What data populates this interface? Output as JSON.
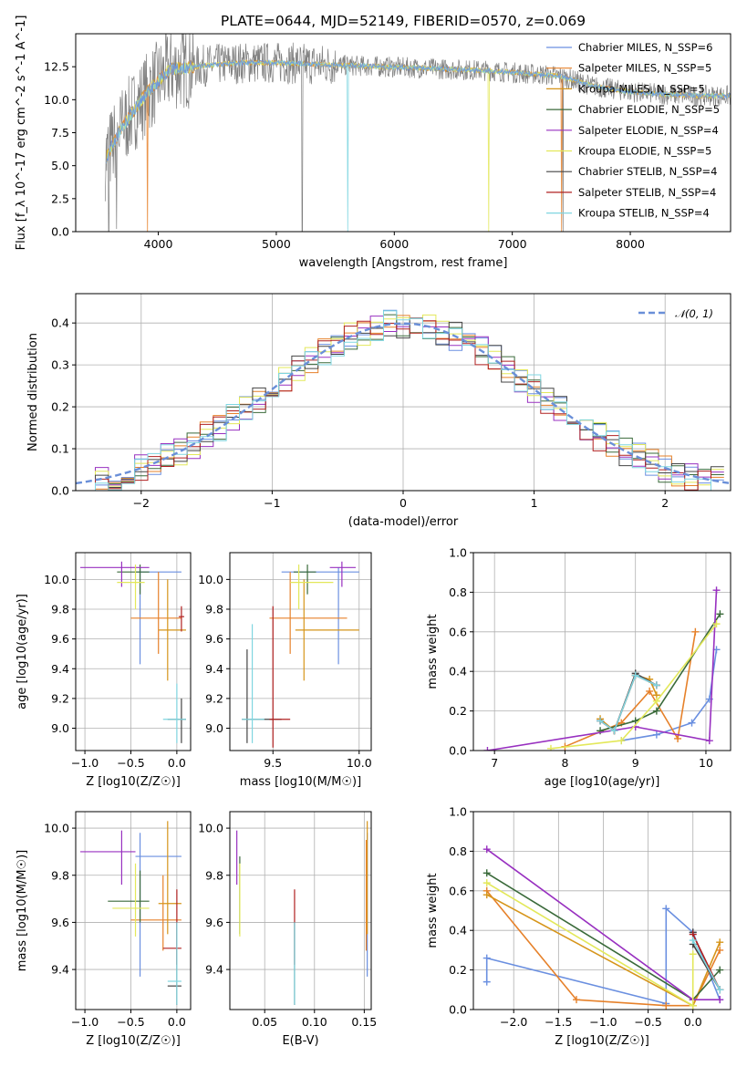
{
  "title": "PLATE=0644, MJD=52149, FIBERID=0570, z=0.069",
  "colors": [
    "#6a8fe0",
    "#e6812a",
    "#d6951a",
    "#3a6a3a",
    "#9830c0",
    "#e3e85a",
    "#444444",
    "#b02020",
    "#7fd6e0"
  ],
  "chart_data": [
    {
      "id": "spectrum",
      "type": "line",
      "title": "PLATE=0644, MJD=52149, FIBERID=0570, z=0.069",
      "xlabel": "wavelength [Angstrom, rest frame]",
      "ylabel": "Flux [f_λ 10^-17 erg cm^-2 s^-1 A^-1]",
      "xlim": [
        3300,
        8850
      ],
      "ylim": [
        0,
        15
      ],
      "xticks": [
        "4000",
        "5000",
        "6000",
        "7000",
        "8000"
      ],
      "yticks": [
        "0.0",
        "2.5",
        "5.0",
        "7.5",
        "10.0",
        "12.5"
      ],
      "legend": [
        "Chabrier MILES, N_SSP=6",
        "Salpeter MILES, N_SSP=5",
        "Kroupa MILES, N_SSP=5",
        "Chabrier ELODIE, N_SSP=5",
        "Salpeter ELODIE, N_SSP=4",
        "Kroupa ELODIE, N_SSP=5",
        "Chabrier STELIB, N_SSP=4",
        "Salpeter STELIB, N_SSP=4",
        "Kroupa STELIB, N_SSP=4"
      ],
      "continuum": {
        "x": [
          3550,
          3700,
          3900,
          4100,
          4400,
          4700,
          5000,
          5300,
          5600,
          5900,
          6200,
          6500,
          6800,
          7100,
          7400,
          7700,
          8000,
          8300,
          8600
        ],
        "y": [
          5.5,
          8.0,
          10.5,
          12.3,
          12.6,
          12.8,
          12.8,
          12.7,
          12.6,
          12.5,
          12.4,
          12.3,
          12.2,
          12.0,
          11.8,
          11.0,
          10.6,
          10.4,
          10.3
        ]
      }
    },
    {
      "id": "residuals",
      "type": "line",
      "xlabel": "(data-model)/error",
      "ylabel": "Normed distribution",
      "xlim": [
        -2.5,
        2.5
      ],
      "ylim": [
        0,
        0.47
      ],
      "xticks": [
        "−2",
        "−1",
        "0",
        "1",
        "2"
      ],
      "yticks": [
        "0.0",
        "0.1",
        "0.2",
        "0.3",
        "0.4"
      ],
      "legend": "𝒩(0, 1)",
      "hist_x": [
        -2.4,
        -2.3,
        -2.2,
        -2.1,
        -2.0,
        -1.9,
        -1.8,
        -1.7,
        -1.6,
        -1.5,
        -1.4,
        -1.3,
        -1.2,
        -1.1,
        -1.0,
        -0.9,
        -0.8,
        -0.7,
        -0.6,
        -0.5,
        -0.4,
        -0.3,
        -0.2,
        -0.1,
        0.0,
        0.1,
        0.2,
        0.3,
        0.4,
        0.5,
        0.6,
        0.7,
        0.8,
        0.9,
        1.0,
        1.1,
        1.2,
        1.3,
        1.4,
        1.5,
        1.6,
        1.7,
        1.8,
        1.9,
        2.0,
        2.1,
        2.2,
        2.3,
        2.4
      ]
    },
    {
      "id": "age-vs-Z",
      "type": "scatter",
      "xlabel": "Z [log10(Z/Z☉)]",
      "ylabel": "age [log10(age/yr)]",
      "xlim": [
        -1.1,
        0.15
      ],
      "ylim": [
        8.85,
        10.18
      ],
      "xticks": [
        "−1.0",
        "−0.5",
        "0.0"
      ],
      "yticks": [
        "9.0",
        "9.2",
        "9.4",
        "9.6",
        "9.8",
        "10.0"
      ],
      "points": [
        {
          "x": -0.4,
          "y": 10.05,
          "xe": [
            -0.45,
            0.05
          ],
          "ye": [
            9.43,
            10.08
          ]
        },
        {
          "x": -0.2,
          "y": 9.74,
          "xe": [
            -0.5,
            0.05
          ],
          "ye": [
            9.5,
            10.05
          ]
        },
        {
          "x": -0.1,
          "y": 9.66,
          "xe": [
            -0.2,
            0.1
          ],
          "ye": [
            9.32,
            10.0
          ]
        },
        {
          "x": -0.4,
          "y": 10.05,
          "xe": [
            -0.65,
            -0.3
          ],
          "ye": [
            9.9,
            10.1
          ]
        },
        {
          "x": -0.6,
          "y": 10.08,
          "xe": [
            -1.05,
            -0.3
          ],
          "ye": [
            9.95,
            10.12
          ]
        },
        {
          "x": -0.45,
          "y": 9.98,
          "xe": [
            -0.65,
            -0.35
          ],
          "ye": [
            9.8,
            10.1
          ]
        },
        {
          "x": 0.05,
          "y": 9.06,
          "xe": [
            -0.1,
            0.1
          ],
          "ye": [
            8.9,
            9.2
          ]
        },
        {
          "x": 0.05,
          "y": 9.75,
          "xe": [
            0.02,
            0.08
          ],
          "ye": [
            9.65,
            9.82
          ]
        },
        {
          "x": 0.0,
          "y": 9.06,
          "xe": [
            -0.15,
            0.1
          ],
          "ye": [
            8.9,
            9.3
          ]
        }
      ]
    },
    {
      "id": "age-vs-mass",
      "type": "scatter",
      "xlabel": "mass [log10(M/M☉)]",
      "ylabel": "",
      "xlim": [
        9.25,
        10.07
      ],
      "ylim": [
        8.85,
        10.18
      ],
      "xticks": [
        "9.5",
        "10.0"
      ],
      "yticks": [
        "9.0",
        "9.2",
        "9.4",
        "9.6",
        "9.8",
        "10.0"
      ],
      "points": [
        {
          "x": 9.88,
          "y": 10.05,
          "xe": [
            9.55,
            10.0
          ],
          "ye": [
            9.43,
            10.08
          ]
        },
        {
          "x": 9.6,
          "y": 9.74,
          "xe": [
            9.48,
            9.93
          ],
          "ye": [
            9.5,
            10.05
          ]
        },
        {
          "x": 9.68,
          "y": 9.66,
          "xe": [
            9.63,
            10.0
          ],
          "ye": [
            9.32,
            10.0
          ]
        },
        {
          "x": 9.7,
          "y": 10.05,
          "xe": [
            9.62,
            9.75
          ],
          "ye": [
            9.9,
            10.1
          ]
        },
        {
          "x": 9.9,
          "y": 10.08,
          "xe": [
            9.83,
            9.98
          ],
          "ye": [
            9.95,
            10.12
          ]
        },
        {
          "x": 9.65,
          "y": 9.98,
          "xe": [
            9.6,
            9.85
          ],
          "ye": [
            9.8,
            10.1
          ]
        },
        {
          "x": 9.35,
          "y": 9.06,
          "xe": [
            9.32,
            9.55
          ],
          "ye": [
            8.9,
            9.53
          ]
        },
        {
          "x": 9.5,
          "y": 9.06,
          "xe": [
            9.48,
            9.6
          ],
          "ye": [
            8.87,
            9.82
          ]
        },
        {
          "x": 9.38,
          "y": 9.06,
          "xe": [
            9.32,
            9.45
          ],
          "ye": [
            8.9,
            9.7
          ]
        }
      ]
    },
    {
      "id": "weight-vs-age",
      "type": "line",
      "xlabel": "age [log10(age/yr)]",
      "ylabel": "mass weight",
      "xlim": [
        6.7,
        10.35
      ],
      "ylim": [
        0,
        1
      ],
      "xticks": [
        "7",
        "8",
        "9",
        "10"
      ],
      "yticks": [
        "0.0",
        "0.2",
        "0.4",
        "0.6",
        "0.8",
        "1.0"
      ],
      "series": [
        {
          "x": [
            8.8,
            9.3,
            9.8,
            10.05,
            10.15
          ],
          "y": [
            0.05,
            0.08,
            0.14,
            0.26,
            0.51
          ]
        },
        {
          "x": [
            8.0,
            8.8,
            9.2,
            9.6,
            9.85
          ],
          "y": [
            0.02,
            0.14,
            0.3,
            0.06,
            0.6
          ]
        },
        {
          "x": [
            8.5,
            8.7,
            9.0,
            9.2,
            9.3
          ],
          "y": [
            0.16,
            0.1,
            0.38,
            0.36,
            0.28
          ]
        },
        {
          "x": [
            8.5,
            9.0,
            9.3,
            10.2
          ],
          "y": [
            0.1,
            0.15,
            0.2,
            0.69
          ]
        },
        {
          "x": [
            6.9,
            9.0,
            10.05,
            10.15
          ],
          "y": [
            0.0,
            0.12,
            0.05,
            0.81
          ]
        },
        {
          "x": [
            7.8,
            8.8,
            9.3,
            10.15
          ],
          "y": [
            0.01,
            0.05,
            0.25,
            0.64
          ]
        },
        {
          "x": [
            8.5,
            8.7,
            9.0,
            9.3
          ],
          "y": [
            0.15,
            0.1,
            0.39,
            0.33
          ]
        },
        {
          "x": [
            8.5,
            8.7,
            9.0,
            9.3
          ],
          "y": [
            0.15,
            0.1,
            0.38,
            0.33
          ]
        },
        {
          "x": [
            8.5,
            8.7,
            9.0,
            9.3
          ],
          "y": [
            0.15,
            0.1,
            0.38,
            0.33
          ]
        }
      ]
    },
    {
      "id": "mass-vs-Z",
      "type": "scatter",
      "xlabel": "Z [log10(Z/Z☉)]",
      "ylabel": "mass [log10(M/M☉)]",
      "xlim": [
        -1.1,
        0.15
      ],
      "ylim": [
        9.23,
        10.07
      ],
      "xticks": [
        "−1.0",
        "−0.5",
        "0.0"
      ],
      "yticks": [
        "9.4",
        "9.6",
        "9.8",
        "10.0"
      ],
      "points": [
        {
          "x": -0.4,
          "y": 9.88,
          "xe": [
            -0.45,
            0.05
          ],
          "ye": [
            9.37,
            9.98
          ]
        },
        {
          "x": -0.15,
          "y": 9.61,
          "xe": [
            -0.5,
            0.05
          ],
          "ye": [
            9.48,
            9.8
          ]
        },
        {
          "x": -0.1,
          "y": 9.68,
          "xe": [
            -0.2,
            0.05
          ],
          "ye": [
            9.55,
            10.03
          ]
        },
        {
          "x": -0.4,
          "y": 9.69,
          "xe": [
            -0.75,
            -0.3
          ],
          "ye": [
            9.6,
            9.82
          ]
        },
        {
          "x": -0.6,
          "y": 9.9,
          "xe": [
            -1.05,
            -0.45
          ],
          "ye": [
            9.76,
            9.99
          ]
        },
        {
          "x": -0.45,
          "y": 9.66,
          "xe": [
            -0.7,
            -0.3
          ],
          "ye": [
            9.54,
            9.85
          ]
        },
        {
          "x": 0.0,
          "y": 9.33,
          "xe": [
            -0.1,
            0.05
          ],
          "ye": [
            9.25,
            9.6
          ]
        },
        {
          "x": 0.0,
          "y": 9.49,
          "xe": [
            -0.15,
            0.05
          ],
          "ye": [
            9.42,
            9.74
          ]
        },
        {
          "x": 0.0,
          "y": 9.35,
          "xe": [
            -0.1,
            0.05
          ],
          "ye": [
            9.25,
            9.6
          ]
        }
      ]
    },
    {
      "id": "mass-vs-EBV",
      "type": "scatter",
      "xlabel": "E(B-V)",
      "ylabel": "",
      "xlim": [
        0.015,
        0.157
      ],
      "ylim": [
        9.23,
        10.07
      ],
      "xticks": [
        "0.05",
        "0.10",
        "0.15"
      ],
      "yticks": [
        "9.4",
        "9.6",
        "9.8",
        "10.0"
      ],
      "points": [
        {
          "x": 0.153,
          "y": 9.88,
          "ye": [
            9.37,
            9.98
          ]
        },
        {
          "x": 0.152,
          "y": 9.61,
          "ye": [
            9.48,
            9.95
          ]
        },
        {
          "x": 0.153,
          "y": 9.68,
          "ye": [
            9.55,
            10.03
          ]
        },
        {
          "x": 0.025,
          "y": 9.69,
          "ye": [
            9.55,
            9.88
          ]
        },
        {
          "x": 0.022,
          "y": 9.9,
          "ye": [
            9.76,
            9.99
          ]
        },
        {
          "x": 0.025,
          "y": 9.66,
          "ye": [
            9.54,
            9.85
          ]
        },
        {
          "x": 0.08,
          "y": 9.33,
          "ye": [
            9.25,
            9.6
          ]
        },
        {
          "x": 0.08,
          "y": 9.49,
          "ye": [
            9.42,
            9.74
          ]
        },
        {
          "x": 0.08,
          "y": 9.35,
          "ye": [
            9.25,
            9.6
          ]
        }
      ]
    },
    {
      "id": "weight-vs-Z",
      "type": "line",
      "xlabel": "Z [log10(Z/Z☉)]",
      "ylabel": "mass weight",
      "xlim": [
        -2.45,
        0.42
      ],
      "ylim": [
        0,
        1
      ],
      "xticks": [
        "−2.0",
        "−1.5",
        "−1.0",
        "−0.5",
        "0.0"
      ],
      "yticks": [
        "0.0",
        "0.2",
        "0.4",
        "0.6",
        "0.8",
        "1.0"
      ],
      "series": [
        {
          "x": [
            -2.3,
            -2.3,
            -0.3,
            -0.3,
            0.0,
            0.3
          ],
          "y": [
            0.14,
            0.26,
            0.03,
            0.51,
            0.39,
            0.05
          ]
        },
        {
          "x": [
            -2.3,
            -1.3,
            -0.3,
            0.0,
            0.3
          ],
          "y": [
            0.6,
            0.05,
            0.02,
            0.02,
            0.3
          ]
        },
        {
          "x": [
            -2.3,
            0.0,
            0.3
          ],
          "y": [
            0.58,
            0.02,
            0.34
          ]
        },
        {
          "x": [
            -2.3,
            0.0,
            0.3
          ],
          "y": [
            0.69,
            0.05,
            0.2
          ]
        },
        {
          "x": [
            -2.3,
            0.0,
            0.3
          ],
          "y": [
            0.81,
            0.05,
            0.05
          ]
        },
        {
          "x": [
            -2.3,
            0.0,
            0.0
          ],
          "y": [
            0.64,
            0.02,
            0.28
          ]
        },
        {
          "x": [
            0.0,
            0.0,
            0.3
          ],
          "y": [
            0.39,
            0.33,
            0.1
          ]
        },
        {
          "x": [
            0.0,
            0.3
          ],
          "y": [
            0.38,
            0.1
          ]
        },
        {
          "x": [
            0.0,
            0.3
          ],
          "y": [
            0.35,
            0.1
          ]
        }
      ]
    }
  ]
}
